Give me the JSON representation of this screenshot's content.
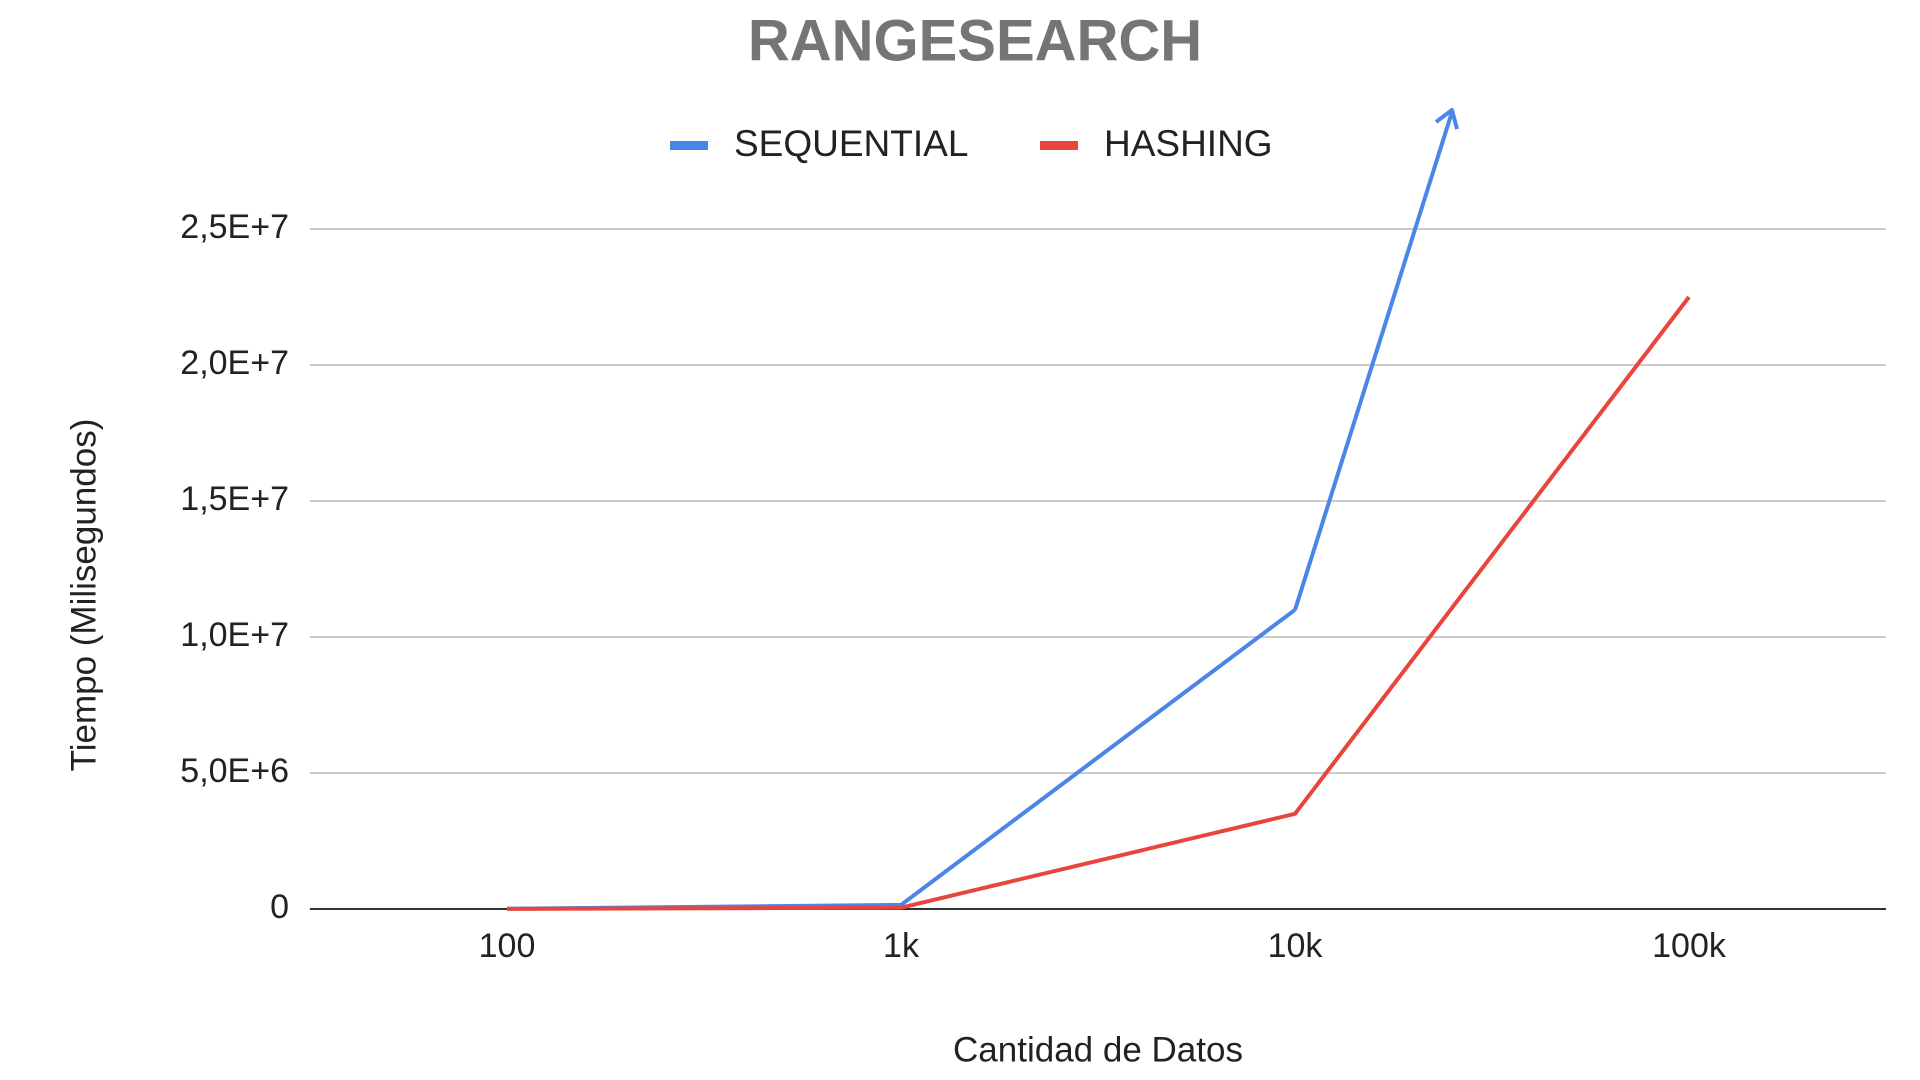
{
  "chart_data": {
    "type": "line",
    "title": "RANGESEARCH",
    "x_label": "Cantidad de Datos",
    "y_label": "Tiempo (Milisegundos)",
    "categories": [
      "100",
      "1k",
      "10k",
      "100k"
    ],
    "series": [
      {
        "name": "SEQUENTIAL",
        "color": "#4a86e8",
        "values": [
          10000,
          150000,
          11000000,
          null
        ]
      },
      {
        "name": "HASHING",
        "color": "#e8453c",
        "values": [
          5000,
          50000,
          3500000,
          22500000
        ]
      }
    ],
    "ylim": [
      0,
      25000000
    ],
    "yticks": [
      0,
      {
        "value": 5000000,
        "label": "5,0E+6"
      },
      {
        "value": 10000000,
        "label": "1,0E+7"
      },
      {
        "value": 15000000,
        "label": "1,5E+7"
      },
      {
        "value": 20000000,
        "label": "2,0E+7"
      },
      {
        "value": 25000000,
        "label": "2,5E+7"
      }
    ],
    "grid": true,
    "legend": "top"
  }
}
